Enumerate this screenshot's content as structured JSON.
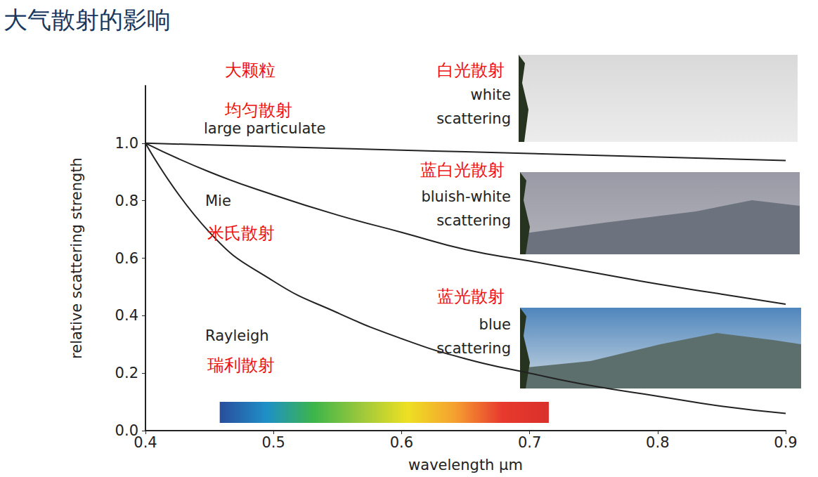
{
  "chart_data": {
    "type": "line",
    "title": "大气散射的影响",
    "x_label": "wavelength μm",
    "y_label": "relative scattering strength",
    "x": [
      0.4,
      0.45,
      0.5,
      0.55,
      0.6,
      0.65,
      0.7,
      0.75,
      0.8,
      0.85,
      0.9
    ],
    "series": [
      {
        "name": "large particulate",
        "color": "#222222",
        "values": [
          1.0,
          0.994,
          0.988,
          0.982,
          0.976,
          0.97,
          0.964,
          0.958,
          0.952,
          0.946,
          0.94
        ]
      },
      {
        "name": "Mie",
        "color": "#222222",
        "values": [
          1.0,
          0.9,
          0.82,
          0.75,
          0.69,
          0.63,
          0.59,
          0.55,
          0.51,
          0.475,
          0.44
        ]
      },
      {
        "name": "Rayleigh",
        "color": "#222222",
        "values": [
          1.0,
          0.69,
          0.52,
          0.41,
          0.32,
          0.25,
          0.2,
          0.155,
          0.12,
          0.085,
          0.06
        ]
      }
    ],
    "xlim": [
      0.4,
      0.9
    ],
    "xticks": [
      0.4,
      0.5,
      0.6,
      0.7,
      0.8,
      0.9
    ],
    "ylim": [
      0,
      1.2
    ],
    "yticks": [
      {
        "value": 0,
        "label": "0.0"
      },
      0.2,
      0.4,
      0.6,
      0.8,
      {
        "value": 1,
        "label": "1.0"
      }
    ],
    "grid": false,
    "spectrum": {
      "x": [
        0.458,
        0.715
      ],
      "y": [
        0.027,
        0.1
      ],
      "colors": [
        "#2a4d9c",
        "#1e90c8",
        "#3cb54a",
        "#9bc83c",
        "#eee023",
        "#f5a030",
        "#e83a2e",
        "#d9302a"
      ]
    },
    "annotations": [
      {
        "text": "大颗粒",
        "color": "#ee1111"
      },
      {
        "text": "均匀散射",
        "color": "#ee1111"
      },
      {
        "text": "米氏散射",
        "color": "#ee1111"
      },
      {
        "text": "瑞利散射",
        "color": "#ee1111"
      }
    ],
    "panels": [
      {
        "title": "白光散射",
        "title_color": "#ee1111",
        "text": "white\nscattering"
      },
      {
        "title": "蓝白光散射",
        "title_color": "#ee1111",
        "text": "bluish-white\nscattering"
      },
      {
        "title": "蓝光散射",
        "title_color": "#ee1111",
        "text": "blue\nscattering"
      }
    ]
  }
}
